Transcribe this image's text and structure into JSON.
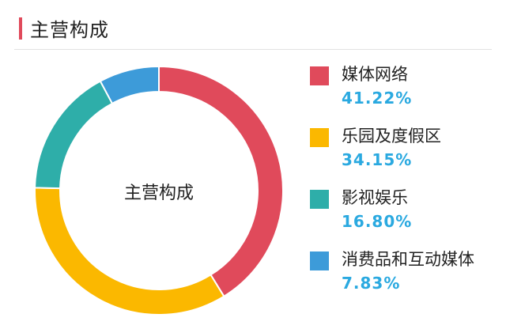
{
  "header": {
    "title": "主营构成"
  },
  "chart_data": {
    "type": "pie",
    "center_label": "主营构成",
    "slices": [
      {
        "name": "媒体网络",
        "value": 41.22,
        "label": "41.22%",
        "color": "#e04a5b"
      },
      {
        "name": "乐园及度假区",
        "value": 34.15,
        "label": "34.15%",
        "color": "#fbb800"
      },
      {
        "name": "影视娱乐",
        "value": 16.8,
        "label": "16.80%",
        "color": "#2eaea9"
      },
      {
        "name": "消费品和互动媒体",
        "value": 7.83,
        "label": "7.83%",
        "color": "#3d9bd9"
      }
    ],
    "legend": "right"
  }
}
